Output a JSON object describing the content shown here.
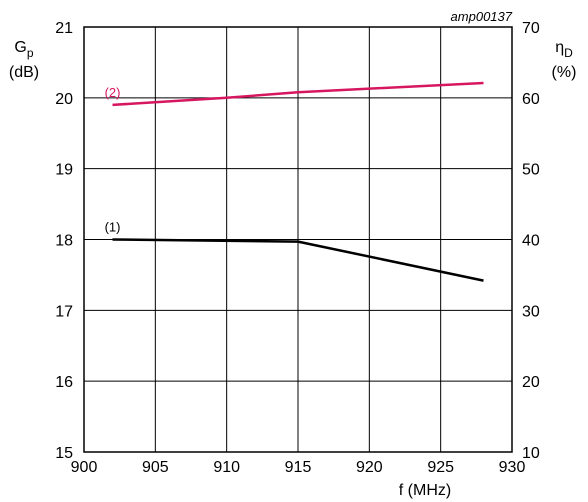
{
  "chart_data": {
    "type": "line",
    "id_label": "amp00137",
    "x": [
      902,
      915,
      928
    ],
    "xlim": [
      900,
      930
    ],
    "x_ticks": [
      900,
      905,
      910,
      915,
      920,
      925,
      930
    ],
    "xlabel": "f (MHz)",
    "ylim_left": [
      15,
      21
    ],
    "y_left_ticks": [
      15,
      16,
      17,
      18,
      19,
      20,
      21
    ],
    "ylabel_left": "Gp",
    "ylabel_left_main": "G",
    "ylabel_left_sub": "p",
    "ylabel_left_unit": "(dB)",
    "ylim_right": [
      10,
      70
    ],
    "y_right_ticks": [
      10,
      20,
      30,
      40,
      50,
      60,
      70
    ],
    "ylabel_right": "ηD",
    "ylabel_right_main": "η",
    "ylabel_right_sub": "D",
    "ylabel_right_unit": "(%)",
    "grid": true,
    "series": [
      {
        "label": "(1)",
        "axis": "left",
        "color": "#000000",
        "x": [
          902,
          915,
          928
        ],
        "y": [
          18.0,
          17.97,
          17.42
        ]
      },
      {
        "label": "(2)",
        "axis": "left",
        "color": "#d6175f",
        "x": [
          902,
          910,
          915,
          928
        ],
        "y": [
          19.9,
          20.0,
          20.08,
          20.21
        ]
      }
    ]
  }
}
